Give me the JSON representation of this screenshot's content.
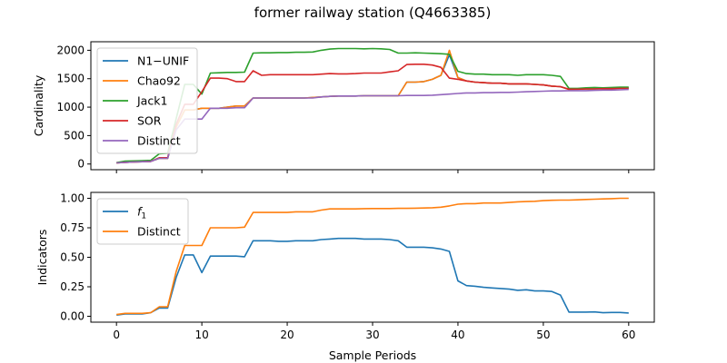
{
  "title": "former railway station (Q4663385)",
  "chart_data": [
    {
      "type": "line",
      "ylabel": "Cardinality",
      "xlabel": "",
      "xlim": [
        -3,
        63
      ],
      "ylim": [
        -100,
        2150
      ],
      "xticks": [
        0,
        10,
        20,
        30,
        40,
        50,
        60
      ],
      "yticks": [
        0,
        500,
        1000,
        1500,
        2000
      ],
      "ytick_labels": [
        "0",
        "500",
        "1000",
        "1500",
        "2000"
      ],
      "show_x_tick_labels": false,
      "legend_location": "upper-left",
      "series": [
        {
          "name": "N1−UNIF",
          "color": "#1f77b4",
          "x": [
            0,
            1,
            2,
            3,
            4,
            5,
            6,
            7,
            8,
            9,
            10,
            11,
            12,
            13,
            14,
            15,
            16,
            17,
            18,
            19,
            20,
            21,
            22,
            23,
            24,
            25,
            26,
            27,
            28,
            29,
            30,
            31,
            32,
            33,
            34,
            35,
            36,
            37,
            38,
            39,
            40,
            41,
            42,
            43,
            44,
            45,
            46,
            47,
            48,
            49,
            50,
            51,
            52,
            53,
            54,
            55,
            56,
            57,
            58,
            59,
            60
          ],
          "values": [
            20,
            30,
            35,
            40,
            45,
            100,
            100,
            650,
            950,
            950,
            980,
            980,
            980,
            1000,
            1020,
            1020,
            1160,
            1160,
            1160,
            1160,
            1160,
            1160,
            1160,
            1170,
            1180,
            1190,
            1195,
            1195,
            1195,
            1200,
            1200,
            1200,
            1200,
            1200,
            1440,
            1440,
            1450,
            1490,
            1560,
            1920,
            1520,
            1460,
            1440,
            1430,
            1420,
            1420,
            1410,
            1410,
            1410,
            1400,
            1390,
            1370,
            1360,
            1310,
            1315,
            1320,
            1320,
            1330,
            1330,
            1335,
            1335
          ]
        },
        {
          "name": "Chao92",
          "color": "#ff7f0e",
          "x": [
            0,
            1,
            2,
            3,
            4,
            5,
            6,
            7,
            8,
            9,
            10,
            11,
            12,
            13,
            14,
            15,
            16,
            17,
            18,
            19,
            20,
            21,
            22,
            23,
            24,
            25,
            26,
            27,
            28,
            29,
            30,
            31,
            32,
            33,
            34,
            35,
            36,
            37,
            38,
            39,
            40,
            41,
            42,
            43,
            44,
            45,
            46,
            47,
            48,
            49,
            50,
            51,
            52,
            53,
            54,
            55,
            56,
            57,
            58,
            59,
            60
          ],
          "values": [
            20,
            30,
            35,
            40,
            45,
            100,
            100,
            650,
            950,
            950,
            980,
            980,
            980,
            1000,
            1020,
            1020,
            1160,
            1160,
            1160,
            1160,
            1160,
            1160,
            1160,
            1170,
            1180,
            1190,
            1195,
            1195,
            1195,
            1200,
            1200,
            1200,
            1200,
            1200,
            1440,
            1440,
            1450,
            1490,
            1560,
            2000,
            1520,
            1460,
            1440,
            1430,
            1420,
            1420,
            1410,
            1410,
            1410,
            1400,
            1390,
            1370,
            1360,
            1310,
            1315,
            1320,
            1320,
            1330,
            1330,
            1335,
            1335
          ]
        },
        {
          "name": "Jack1",
          "color": "#2ca02c",
          "x": [
            0,
            1,
            2,
            3,
            4,
            5,
            6,
            7,
            8,
            9,
            10,
            11,
            12,
            13,
            14,
            15,
            16,
            17,
            18,
            19,
            20,
            21,
            22,
            23,
            24,
            25,
            26,
            27,
            28,
            29,
            30,
            31,
            32,
            33,
            34,
            35,
            36,
            37,
            38,
            39,
            40,
            41,
            42,
            43,
            44,
            45,
            46,
            47,
            48,
            49,
            50,
            51,
            52,
            53,
            54,
            55,
            56,
            57,
            58,
            59,
            60
          ],
          "values": [
            25,
            50,
            55,
            60,
            65,
            180,
            190,
            800,
            1400,
            1400,
            1230,
            1600,
            1605,
            1610,
            1610,
            1615,
            1950,
            1955,
            1955,
            1960,
            1960,
            1965,
            1965,
            1970,
            2000,
            2020,
            2030,
            2030,
            2030,
            2025,
            2030,
            2025,
            2015,
            1950,
            1950,
            1955,
            1950,
            1945,
            1940,
            1930,
            1630,
            1590,
            1580,
            1580,
            1570,
            1570,
            1570,
            1560,
            1570,
            1570,
            1570,
            1560,
            1540,
            1330,
            1330,
            1340,
            1345,
            1340,
            1345,
            1350,
            1350
          ]
        },
        {
          "name": "SOR",
          "color": "#d62728",
          "x": [
            0,
            1,
            2,
            3,
            4,
            5,
            6,
            7,
            8,
            9,
            10,
            11,
            12,
            13,
            14,
            15,
            16,
            17,
            18,
            19,
            20,
            21,
            22,
            23,
            24,
            25,
            26,
            27,
            28,
            29,
            30,
            31,
            32,
            33,
            34,
            35,
            36,
            37,
            38,
            39,
            40,
            41,
            42,
            43,
            44,
            45,
            46,
            47,
            48,
            49,
            50,
            51,
            52,
            53,
            54,
            55,
            56,
            57,
            58,
            59,
            60
          ],
          "values": [
            20,
            30,
            35,
            40,
            45,
            110,
            110,
            700,
            1050,
            1050,
            1270,
            1510,
            1510,
            1500,
            1450,
            1450,
            1640,
            1560,
            1570,
            1570,
            1570,
            1570,
            1570,
            1570,
            1580,
            1590,
            1585,
            1585,
            1590,
            1600,
            1600,
            1600,
            1620,
            1640,
            1750,
            1755,
            1755,
            1740,
            1700,
            1510,
            1490,
            1460,
            1440,
            1430,
            1420,
            1420,
            1410,
            1410,
            1410,
            1400,
            1390,
            1370,
            1360,
            1315,
            1315,
            1320,
            1320,
            1325,
            1325,
            1330,
            1330
          ]
        },
        {
          "name": "Distinct",
          "color": "#9467bd",
          "x": [
            0,
            1,
            2,
            3,
            4,
            5,
            6,
            7,
            8,
            9,
            10,
            11,
            12,
            13,
            14,
            15,
            16,
            17,
            18,
            19,
            20,
            21,
            22,
            23,
            24,
            25,
            26,
            27,
            28,
            29,
            30,
            31,
            32,
            33,
            34,
            35,
            36,
            37,
            38,
            39,
            40,
            41,
            42,
            43,
            44,
            45,
            46,
            47,
            48,
            49,
            50,
            51,
            52,
            53,
            54,
            55,
            56,
            57,
            58,
            59,
            60
          ],
          "values": [
            20,
            30,
            35,
            40,
            45,
            100,
            100,
            600,
            790,
            790,
            790,
            980,
            980,
            980,
            990,
            990,
            1160,
            1160,
            1160,
            1160,
            1160,
            1160,
            1160,
            1160,
            1180,
            1190,
            1195,
            1195,
            1195,
            1200,
            1200,
            1200,
            1200,
            1200,
            1205,
            1205,
            1205,
            1210,
            1220,
            1230,
            1240,
            1250,
            1250,
            1255,
            1255,
            1260,
            1260,
            1265,
            1270,
            1275,
            1280,
            1285,
            1285,
            1290,
            1290,
            1290,
            1295,
            1300,
            1300,
            1305,
            1310
          ]
        }
      ]
    },
    {
      "type": "line",
      "ylabel": "Indicators",
      "xlabel": "Sample Periods",
      "xlim": [
        -3,
        63
      ],
      "ylim": [
        -0.05,
        1.05
      ],
      "xticks": [
        0,
        10,
        20,
        30,
        40,
        50,
        60
      ],
      "xtick_labels": [
        "0",
        "10",
        "20",
        "30",
        "40",
        "50",
        "60"
      ],
      "yticks": [
        0,
        0.25,
        0.5,
        0.75,
        1.0
      ],
      "ytick_labels": [
        "0.00",
        "0.25",
        "0.50",
        "0.75",
        "1.00"
      ],
      "show_x_tick_labels": true,
      "legend_location": "upper-left",
      "series": [
        {
          "name": "f",
          "name_sub": "1",
          "color": "#1f77b4",
          "x": [
            0,
            1,
            2,
            3,
            4,
            5,
            6,
            7,
            8,
            9,
            10,
            11,
            12,
            13,
            14,
            15,
            16,
            17,
            18,
            19,
            20,
            21,
            22,
            23,
            24,
            25,
            26,
            27,
            28,
            29,
            30,
            31,
            32,
            33,
            34,
            35,
            36,
            37,
            38,
            39,
            40,
            41,
            42,
            43,
            44,
            45,
            46,
            47,
            48,
            49,
            50,
            51,
            52,
            53,
            54,
            55,
            56,
            57,
            58,
            59,
            60
          ],
          "values": [
            0.01,
            0.02,
            0.02,
            0.02,
            0.03,
            0.07,
            0.07,
            0.33,
            0.52,
            0.52,
            0.37,
            0.51,
            0.51,
            0.51,
            0.51,
            0.505,
            0.64,
            0.64,
            0.64,
            0.635,
            0.635,
            0.64,
            0.64,
            0.64,
            0.65,
            0.655,
            0.66,
            0.66,
            0.66,
            0.655,
            0.655,
            0.655,
            0.65,
            0.64,
            0.585,
            0.585,
            0.585,
            0.58,
            0.57,
            0.55,
            0.3,
            0.26,
            0.255,
            0.245,
            0.24,
            0.235,
            0.23,
            0.22,
            0.225,
            0.215,
            0.215,
            0.21,
            0.18,
            0.035,
            0.035,
            0.035,
            0.037,
            0.03,
            0.032,
            0.032,
            0.028
          ]
        },
        {
          "name": "Distinct",
          "color": "#ff7f0e",
          "x": [
            0,
            1,
            2,
            3,
            4,
            5,
            6,
            7,
            8,
            9,
            10,
            11,
            12,
            13,
            14,
            15,
            16,
            17,
            18,
            19,
            20,
            21,
            22,
            23,
            24,
            25,
            26,
            27,
            28,
            29,
            30,
            31,
            32,
            33,
            34,
            35,
            36,
            37,
            38,
            39,
            40,
            41,
            42,
            43,
            44,
            45,
            46,
            47,
            48,
            49,
            50,
            51,
            52,
            53,
            54,
            55,
            56,
            57,
            58,
            59,
            60
          ],
          "values": [
            0.015,
            0.025,
            0.025,
            0.025,
            0.03,
            0.08,
            0.08,
            0.38,
            0.6,
            0.6,
            0.6,
            0.75,
            0.75,
            0.75,
            0.75,
            0.755,
            0.88,
            0.88,
            0.88,
            0.88,
            0.88,
            0.885,
            0.885,
            0.885,
            0.9,
            0.91,
            0.91,
            0.91,
            0.91,
            0.912,
            0.913,
            0.913,
            0.913,
            0.915,
            0.915,
            0.916,
            0.918,
            0.92,
            0.925,
            0.935,
            0.95,
            0.955,
            0.955,
            0.96,
            0.96,
            0.96,
            0.965,
            0.97,
            0.972,
            0.975,
            0.98,
            0.983,
            0.985,
            0.985,
            0.987,
            0.99,
            0.992,
            0.995,
            0.997,
            1.0,
            1.0
          ]
        }
      ]
    }
  ]
}
